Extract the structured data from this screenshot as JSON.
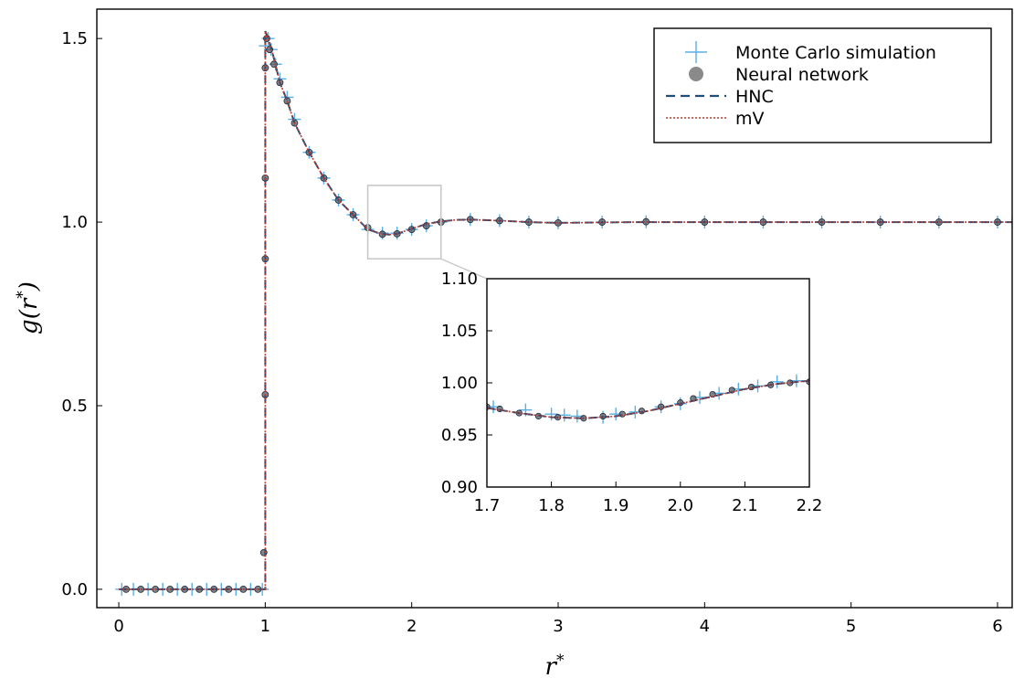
{
  "chart_data": [
    {
      "type": "line",
      "xlabel": "r*",
      "ylabel": "g(r*)",
      "xlim": [
        -0.15,
        6.1
      ],
      "ylim": [
        -0.05,
        1.58
      ],
      "x_ticks": [
        0,
        1,
        2,
        3,
        4,
        5,
        6
      ],
      "x_tick_labels": [
        "0",
        "1",
        "2",
        "3",
        "4",
        "5",
        "6"
      ],
      "y_ticks": [
        0.0,
        0.5,
        1.0,
        1.5
      ],
      "y_tick_labels": [
        "0.0",
        "0.5",
        "1.0",
        "1.5"
      ],
      "grid": false,
      "legend_position": "top-right",
      "legend": [
        {
          "label": "Monte Carlo simulation",
          "marker": "cross",
          "color": "#5aaee6"
        },
        {
          "label": "Neural network",
          "marker": "circle",
          "color": "#8a8a8a"
        },
        {
          "label": "HNC",
          "marker": "dashed-line",
          "color": "#1f4e79"
        },
        {
          "label": "mV",
          "marker": "dotted-line",
          "color": "#c0392b"
        }
      ],
      "series": [
        {
          "name": "Monte Carlo simulation",
          "x": [
            0.02,
            0.1,
            0.2,
            0.3,
            0.4,
            0.5,
            0.6,
            0.7,
            0.8,
            0.9,
            0.98,
            1.0,
            1.02,
            1.04,
            1.07,
            1.1,
            1.15,
            1.2,
            1.3,
            1.4,
            1.5,
            1.6,
            1.7,
            1.8,
            1.9,
            2.0,
            2.1,
            2.2,
            2.4,
            2.6,
            2.8,
            3.0,
            3.3,
            3.6,
            4.0,
            4.4,
            4.8,
            5.2,
            5.6,
            6.0,
            6.1
          ],
          "y": [
            0,
            0,
            0,
            0,
            0,
            0,
            0,
            0,
            0,
            0,
            0,
            1.48,
            1.5,
            1.47,
            1.43,
            1.39,
            1.34,
            1.28,
            1.19,
            1.12,
            1.06,
            1.02,
            0.98,
            0.97,
            0.97,
            0.98,
            0.99,
            1.0,
            1.007,
            1.004,
            1.0,
            0.998,
            1.0,
            1.001,
            1.0,
            1.0,
            1.0,
            1.0,
            1.0,
            1.0,
            1.0
          ]
        },
        {
          "name": "Neural network",
          "x": [
            0.05,
            0.15,
            0.25,
            0.35,
            0.45,
            0.55,
            0.65,
            0.75,
            0.85,
            0.95,
            0.99,
            1.0,
            1.0,
            1.0,
            1.0,
            1.01,
            1.03,
            1.06,
            1.1,
            1.15,
            1.2,
            1.3,
            1.4,
            1.5,
            1.6,
            1.7,
            1.8,
            1.9,
            2.0,
            2.1,
            2.2,
            2.4,
            2.6,
            2.8,
            3.0,
            3.3,
            3.6,
            4.0,
            4.4,
            4.8,
            5.2,
            5.6,
            6.0
          ],
          "y": [
            0,
            0,
            0,
            0,
            0,
            0,
            0,
            0,
            0,
            0,
            0.1,
            0.53,
            0.9,
            1.12,
            1.42,
            1.5,
            1.47,
            1.43,
            1.38,
            1.33,
            1.27,
            1.19,
            1.12,
            1.06,
            1.02,
            0.985,
            0.967,
            0.968,
            0.98,
            0.99,
            1.0,
            1.007,
            1.004,
            1.0,
            0.998,
            1.0,
            1.001,
            1.0,
            1.0,
            1.0,
            1.0,
            1.0,
            1.0
          ]
        },
        {
          "name": "HNC",
          "x": [
            0,
            0.98,
            1.0,
            1.0,
            1.02,
            1.05,
            1.1,
            1.15,
            1.2,
            1.3,
            1.4,
            1.5,
            1.6,
            1.7,
            1.8,
            1.85,
            1.9,
            2.0,
            2.1,
            2.2,
            2.3,
            2.4,
            2.6,
            2.8,
            3.0,
            3.5,
            4.0,
            5.0,
            6.1
          ],
          "y": [
            0,
            0,
            0,
            1.52,
            1.5,
            1.46,
            1.38,
            1.33,
            1.27,
            1.19,
            1.12,
            1.06,
            1.02,
            0.98,
            0.967,
            0.966,
            0.968,
            0.982,
            0.995,
            1.002,
            1.006,
            1.007,
            1.004,
            1.0,
            0.998,
            1.0,
            1.0,
            1.0,
            1.0
          ]
        },
        {
          "name": "mV",
          "x": [
            0,
            0.98,
            1.0,
            1.0,
            1.02,
            1.05,
            1.1,
            1.15,
            1.2,
            1.3,
            1.4,
            1.5,
            1.6,
            1.7,
            1.8,
            1.85,
            1.9,
            2.0,
            2.1,
            2.2,
            2.3,
            2.4,
            2.6,
            2.8,
            3.0,
            3.5,
            4.0,
            5.0,
            6.1
          ],
          "y": [
            0,
            0,
            0,
            1.52,
            1.5,
            1.46,
            1.38,
            1.33,
            1.27,
            1.19,
            1.12,
            1.06,
            1.02,
            0.98,
            0.967,
            0.966,
            0.968,
            0.982,
            0.995,
            1.002,
            1.006,
            1.007,
            1.004,
            1.0,
            0.998,
            1.0,
            1.0,
            1.0,
            1.0
          ]
        }
      ]
    },
    {
      "type": "line",
      "xlim": [
        1.7,
        2.2
      ],
      "ylim": [
        0.9,
        1.1
      ],
      "x_ticks": [
        1.7,
        1.8,
        1.9,
        2.0,
        2.1,
        2.2
      ],
      "x_tick_labels": [
        "1.7",
        "1.8",
        "1.9",
        "2.0",
        "2.1",
        "2.2"
      ],
      "y_ticks": [
        0.9,
        0.95,
        1.0,
        1.05,
        1.1
      ],
      "y_tick_labels": [
        "0.90",
        "0.95",
        "1.00",
        "1.05",
        "1.10"
      ],
      "grid": false,
      "series": [
        {
          "name": "Monte Carlo simulation",
          "x": [
            1.71,
            1.76,
            1.8,
            1.82,
            1.84,
            1.88,
            1.9,
            1.93,
            1.97,
            2.0,
            2.03,
            2.06,
            2.09,
            2.12,
            2.15,
            2.18
          ],
          "y": [
            0.977,
            0.974,
            0.97,
            0.969,
            0.968,
            0.967,
            0.97,
            0.972,
            0.977,
            0.98,
            0.986,
            0.99,
            0.994,
            0.997,
            1.001,
            1.002
          ]
        },
        {
          "name": "Neural network",
          "x": [
            1.7,
            1.72,
            1.75,
            1.78,
            1.81,
            1.85,
            1.88,
            1.91,
            1.94,
            1.97,
            2.0,
            2.02,
            2.05,
            2.08,
            2.11,
            2.14,
            2.17,
            2.2
          ],
          "y": [
            0.977,
            0.975,
            0.971,
            0.968,
            0.967,
            0.966,
            0.968,
            0.97,
            0.973,
            0.977,
            0.981,
            0.985,
            0.989,
            0.993,
            0.996,
            0.998,
            1.0,
            1.001
          ]
        },
        {
          "name": "HNC",
          "x": [
            1.7,
            1.75,
            1.8,
            1.85,
            1.9,
            1.95,
            2.0,
            2.05,
            2.1,
            2.15,
            2.2
          ],
          "y": [
            0.976,
            0.971,
            0.967,
            0.966,
            0.968,
            0.973,
            0.98,
            0.987,
            0.994,
            0.999,
            1.002
          ]
        },
        {
          "name": "mV",
          "x": [
            1.7,
            1.75,
            1.8,
            1.85,
            1.9,
            1.95,
            2.0,
            2.05,
            2.1,
            2.15,
            2.2
          ],
          "y": [
            0.976,
            0.971,
            0.967,
            0.966,
            0.968,
            0.973,
            0.98,
            0.987,
            0.994,
            0.999,
            1.002
          ]
        }
      ]
    }
  ]
}
